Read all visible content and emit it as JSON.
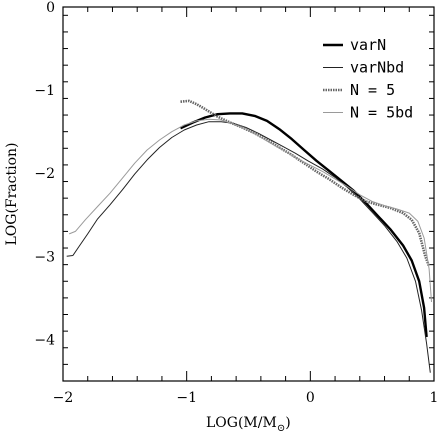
{
  "chart_data": {
    "type": "line",
    "xlabel": "LOG(M/M",
    "xlabel_sub": "⊙",
    "xlabel_close": ")",
    "ylabel": "LOG(Fraction)",
    "xlim": [
      -2,
      1
    ],
    "ylim": [
      -4.5,
      0
    ],
    "xticks": [
      {
        "value": -2,
        "label": "−2"
      },
      {
        "value": -1,
        "label": "−1"
      },
      {
        "value": 0,
        "label": "0"
      },
      {
        "value": 1,
        "label": "1"
      }
    ],
    "yticks": [
      {
        "value": 0,
        "label": "0"
      },
      {
        "value": -1,
        "label": "−1"
      },
      {
        "value": -2,
        "label": "−2"
      },
      {
        "value": -3,
        "label": "−3"
      },
      {
        "value": -4,
        "label": "−4"
      }
    ],
    "legend_position": "top-right",
    "series": [
      {
        "name": "varN",
        "color": "#000000",
        "style": "thick",
        "points": [
          [
            -1.05,
            -1.46
          ],
          [
            -0.95,
            -1.39
          ],
          [
            -0.85,
            -1.33
          ],
          [
            -0.75,
            -1.29
          ],
          [
            -0.65,
            -1.28
          ],
          [
            -0.55,
            -1.28
          ],
          [
            -0.45,
            -1.31
          ],
          [
            -0.35,
            -1.37
          ],
          [
            -0.25,
            -1.47
          ],
          [
            -0.15,
            -1.59
          ],
          [
            -0.05,
            -1.72
          ],
          [
            0.05,
            -1.85
          ],
          [
            0.15,
            -1.97
          ],
          [
            0.25,
            -2.09
          ],
          [
            0.35,
            -2.21
          ],
          [
            0.45,
            -2.36
          ],
          [
            0.55,
            -2.52
          ],
          [
            0.65,
            -2.68
          ],
          [
            0.75,
            -2.87
          ],
          [
            0.82,
            -3.05
          ],
          [
            0.88,
            -3.3
          ],
          [
            0.92,
            -3.62
          ],
          [
            0.94,
            -3.97
          ]
        ]
      },
      {
        "name": "varNbd",
        "color": "#222222",
        "style": "thin",
        "points": [
          [
            -1.97,
            -3.0
          ],
          [
            -1.92,
            -2.99
          ],
          [
            -1.87,
            -2.88
          ],
          [
            -1.8,
            -2.73
          ],
          [
            -1.72,
            -2.55
          ],
          [
            -1.62,
            -2.38
          ],
          [
            -1.52,
            -2.2
          ],
          [
            -1.42,
            -2.01
          ],
          [
            -1.32,
            -1.84
          ],
          [
            -1.22,
            -1.69
          ],
          [
            -1.12,
            -1.57
          ],
          [
            -1.02,
            -1.48
          ],
          [
            -0.92,
            -1.42
          ],
          [
            -0.82,
            -1.38
          ],
          [
            -0.72,
            -1.38
          ],
          [
            -0.62,
            -1.4
          ],
          [
            -0.52,
            -1.45
          ],
          [
            -0.42,
            -1.52
          ],
          [
            -0.32,
            -1.6
          ],
          [
            -0.22,
            -1.68
          ],
          [
            -0.12,
            -1.76
          ],
          [
            -0.02,
            -1.85
          ],
          [
            0.1,
            -1.95
          ],
          [
            0.2,
            -2.05
          ],
          [
            0.3,
            -2.17
          ],
          [
            0.4,
            -2.31
          ],
          [
            0.5,
            -2.47
          ],
          [
            0.6,
            -2.63
          ],
          [
            0.7,
            -2.82
          ],
          [
            0.78,
            -3.02
          ],
          [
            0.85,
            -3.3
          ],
          [
            0.9,
            -3.65
          ],
          [
            0.94,
            -4.05
          ],
          [
            0.97,
            -4.4
          ]
        ]
      },
      {
        "name": "N = 5",
        "color": "#666666",
        "style": "dotted-thick",
        "points": [
          [
            -1.05,
            -1.14
          ],
          [
            -0.98,
            -1.13
          ],
          [
            -0.92,
            -1.17
          ],
          [
            -0.85,
            -1.23
          ],
          [
            -0.75,
            -1.32
          ],
          [
            -0.65,
            -1.39
          ],
          [
            -0.55,
            -1.45
          ],
          [
            -0.45,
            -1.52
          ],
          [
            -0.35,
            -1.6
          ],
          [
            -0.25,
            -1.69
          ],
          [
            -0.15,
            -1.78
          ],
          [
            -0.05,
            -1.88
          ],
          [
            0.05,
            -1.98
          ],
          [
            0.15,
            -2.07
          ],
          [
            0.25,
            -2.17
          ],
          [
            0.35,
            -2.26
          ],
          [
            0.45,
            -2.34
          ],
          [
            0.55,
            -2.38
          ],
          [
            0.65,
            -2.42
          ],
          [
            0.75,
            -2.48
          ],
          [
            0.82,
            -2.56
          ],
          [
            0.88,
            -2.72
          ],
          [
            0.93,
            -3.0
          ],
          [
            0.96,
            -3.12
          ]
        ]
      },
      {
        "name": "N = 5bd",
        "color": "#9a9a9a",
        "style": "thin",
        "points": [
          [
            -1.95,
            -2.73
          ],
          [
            -1.9,
            -2.7
          ],
          [
            -1.82,
            -2.56
          ],
          [
            -1.72,
            -2.4
          ],
          [
            -1.62,
            -2.24
          ],
          [
            -1.52,
            -2.06
          ],
          [
            -1.42,
            -1.88
          ],
          [
            -1.32,
            -1.72
          ],
          [
            -1.22,
            -1.6
          ],
          [
            -1.12,
            -1.5
          ],
          [
            -1.02,
            -1.42
          ],
          [
            -0.92,
            -1.37
          ],
          [
            -0.82,
            -1.35
          ],
          [
            -0.72,
            -1.36
          ],
          [
            -0.62,
            -1.41
          ],
          [
            -0.52,
            -1.47
          ],
          [
            -0.42,
            -1.55
          ],
          [
            -0.32,
            -1.64
          ],
          [
            -0.22,
            -1.72
          ],
          [
            -0.12,
            -1.81
          ],
          [
            -0.02,
            -1.89
          ],
          [
            0.1,
            -1.98
          ],
          [
            0.2,
            -2.07
          ],
          [
            0.3,
            -2.16
          ],
          [
            0.4,
            -2.26
          ],
          [
            0.5,
            -2.34
          ],
          [
            0.6,
            -2.39
          ],
          [
            0.7,
            -2.43
          ],
          [
            0.8,
            -2.48
          ],
          [
            0.87,
            -2.58
          ],
          [
            0.92,
            -2.78
          ],
          [
            0.96,
            -3.15
          ],
          [
            0.98,
            -3.55
          ]
        ]
      }
    ]
  }
}
